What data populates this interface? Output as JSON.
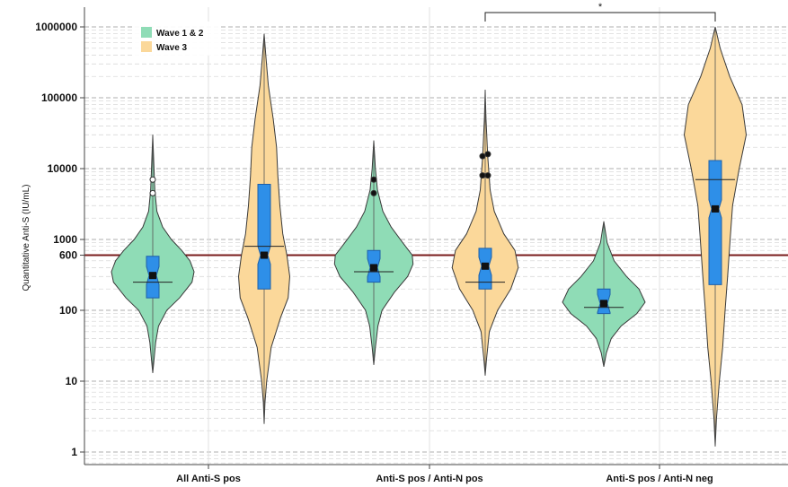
{
  "chart_data": {
    "type": "violin",
    "ylabel": "Quantitative Anti-S (IU/mL)",
    "yscale": "log",
    "ylim": [
      0.7,
      1200000
    ],
    "grid": true,
    "legend_position": "top-left",
    "y_ticks": [
      {
        "value": 1,
        "label": "1"
      },
      {
        "value": 10,
        "label": "10"
      },
      {
        "value": 100,
        "label": "100"
      },
      {
        "value": 600,
        "label": "600"
      },
      {
        "value": 1000,
        "label": "1000"
      },
      {
        "value": 10000,
        "label": "10000"
      },
      {
        "value": 100000,
        "label": "100000"
      },
      {
        "value": 1000000,
        "label": "1000000"
      }
    ],
    "categories": [
      "All Anti-S pos",
      "Anti-S pos / Anti-N pos",
      "Anti-S pos / Anti-N neg"
    ],
    "series": [
      {
        "name": "Wave 1 & 2",
        "color": "#8fdcb6"
      },
      {
        "name": "Wave 3",
        "color": "#fbd89a"
      }
    ],
    "threshold": {
      "value": 600,
      "label": "600",
      "color": "#7a1c1c"
    },
    "significance": {
      "label": "*",
      "from": "Anti-S pos / Anti-N pos — Wave 3",
      "to": "Anti-S pos / Anti-N neg — Wave 3"
    },
    "violins": [
      {
        "category": "All Anti-S pos",
        "series": "Wave 1 & 2",
        "min": 13,
        "max": 30000,
        "median": 310,
        "q1": 150,
        "q3": 580,
        "mean": 250,
        "outliers": [
          4500,
          7000
        ],
        "profile": [
          [
            13,
            0.0
          ],
          [
            20,
            0.03
          ],
          [
            35,
            0.07
          ],
          [
            60,
            0.14
          ],
          [
            100,
            0.34
          ],
          [
            150,
            0.65
          ],
          [
            250,
            0.95
          ],
          [
            350,
            1.0
          ],
          [
            500,
            0.9
          ],
          [
            700,
            0.7
          ],
          [
            1000,
            0.45
          ],
          [
            1500,
            0.24
          ],
          [
            2500,
            0.1
          ],
          [
            5000,
            0.05
          ],
          [
            10000,
            0.03
          ],
          [
            30000,
            0.0
          ]
        ]
      },
      {
        "category": "All Anti-S pos",
        "series": "Wave 3",
        "min": 2.5,
        "max": 800000,
        "median": 600,
        "q1": 200,
        "q3": 6000,
        "mean": 800,
        "outliers": [],
        "profile": [
          [
            2.5,
            0.0
          ],
          [
            5,
            0.02
          ],
          [
            10,
            0.06
          ],
          [
            30,
            0.17
          ],
          [
            80,
            0.4
          ],
          [
            150,
            0.58
          ],
          [
            300,
            0.62
          ],
          [
            600,
            0.55
          ],
          [
            1200,
            0.45
          ],
          [
            3000,
            0.38
          ],
          [
            8000,
            0.33
          ],
          [
            20000,
            0.3
          ],
          [
            50000,
            0.22
          ],
          [
            150000,
            0.1
          ],
          [
            400000,
            0.04
          ],
          [
            800000,
            0.0
          ]
        ]
      },
      {
        "category": "Anti-S pos / Anti-N pos",
        "series": "Wave 1 & 2",
        "min": 17,
        "max": 25000,
        "median": 400,
        "q1": 250,
        "q3": 700,
        "mean": 350,
        "outliers": [
          4500,
          7000
        ],
        "profile": [
          [
            17,
            0.0
          ],
          [
            30,
            0.04
          ],
          [
            60,
            0.1
          ],
          [
            100,
            0.2
          ],
          [
            180,
            0.5
          ],
          [
            300,
            0.82
          ],
          [
            450,
            0.95
          ],
          [
            600,
            0.93
          ],
          [
            900,
            0.7
          ],
          [
            1500,
            0.42
          ],
          [
            2500,
            0.22
          ],
          [
            5000,
            0.09
          ],
          [
            10000,
            0.04
          ],
          [
            25000,
            0.0
          ]
        ]
      },
      {
        "category": "Anti-S pos / Anti-N pos",
        "series": "Wave 3",
        "min": 12,
        "max": 130000,
        "median": 420,
        "q1": 200,
        "q3": 750,
        "mean": 250,
        "outliers": [
          8000,
          8000,
          15000,
          16000
        ],
        "profile": [
          [
            12,
            0.0
          ],
          [
            20,
            0.03
          ],
          [
            50,
            0.1
          ],
          [
            100,
            0.3
          ],
          [
            200,
            0.62
          ],
          [
            400,
            0.8
          ],
          [
            700,
            0.72
          ],
          [
            1200,
            0.45
          ],
          [
            2500,
            0.22
          ],
          [
            5000,
            0.12
          ],
          [
            15000,
            0.06
          ],
          [
            50000,
            0.02
          ],
          [
            130000,
            0.0
          ]
        ]
      },
      {
        "category": "Anti-S pos / Anti-N neg",
        "series": "Wave 1 & 2",
        "min": 16,
        "max": 1800,
        "median": 125,
        "q1": 90,
        "q3": 200,
        "mean": 110,
        "outliers": [],
        "profile": [
          [
            16,
            0.0
          ],
          [
            25,
            0.06
          ],
          [
            40,
            0.18
          ],
          [
            60,
            0.42
          ],
          [
            90,
            0.8
          ],
          [
            130,
            1.0
          ],
          [
            200,
            0.85
          ],
          [
            300,
            0.55
          ],
          [
            500,
            0.25
          ],
          [
            900,
            0.08
          ],
          [
            1800,
            0.0
          ]
        ]
      },
      {
        "category": "Anti-S pos / Anti-N neg",
        "series": "Wave 3",
        "min": 1.2,
        "max": 1000000,
        "median": 2700,
        "q1": 230,
        "q3": 13000,
        "mean": 7000,
        "outliers": [],
        "profile": [
          [
            1.2,
            0.0
          ],
          [
            3,
            0.03
          ],
          [
            10,
            0.1
          ],
          [
            30,
            0.18
          ],
          [
            100,
            0.24
          ],
          [
            300,
            0.3
          ],
          [
            1000,
            0.36
          ],
          [
            3000,
            0.42
          ],
          [
            10000,
            0.58
          ],
          [
            30000,
            0.75
          ],
          [
            80000,
            0.65
          ],
          [
            200000,
            0.35
          ],
          [
            500000,
            0.12
          ],
          [
            1000000,
            0.0
          ]
        ]
      }
    ]
  }
}
